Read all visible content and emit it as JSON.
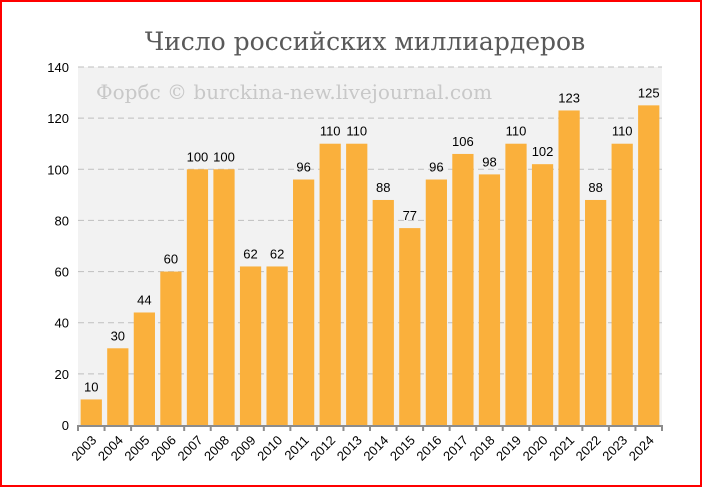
{
  "chart_data": {
    "type": "bar",
    "title": "Число российских миллиардеров",
    "watermark": "Форбс © burckina-new.livejournal.com",
    "categories": [
      "2003",
      "2004",
      "2005",
      "2006",
      "2007",
      "2008",
      "2009",
      "2010",
      "2011",
      "2012",
      "2013",
      "2014",
      "2015",
      "2016",
      "2017",
      "2018",
      "2019",
      "2020",
      "2021",
      "2022",
      "2023",
      "2024"
    ],
    "values": [
      10,
      30,
      44,
      60,
      100,
      100,
      62,
      62,
      96,
      110,
      110,
      88,
      77,
      96,
      106,
      98,
      110,
      102,
      123,
      88,
      110,
      125
    ],
    "xlabel": "",
    "ylabel": "",
    "ylim": [
      0,
      140
    ],
    "yticks": [
      0,
      20,
      40,
      60,
      80,
      100,
      120,
      140
    ],
    "grid": true,
    "data_labels": true,
    "colors": {
      "bar": "#FAB03C",
      "plot_bg": "#F2F2F2",
      "grid": "#BFBFBF",
      "border": "#FF0000"
    }
  }
}
